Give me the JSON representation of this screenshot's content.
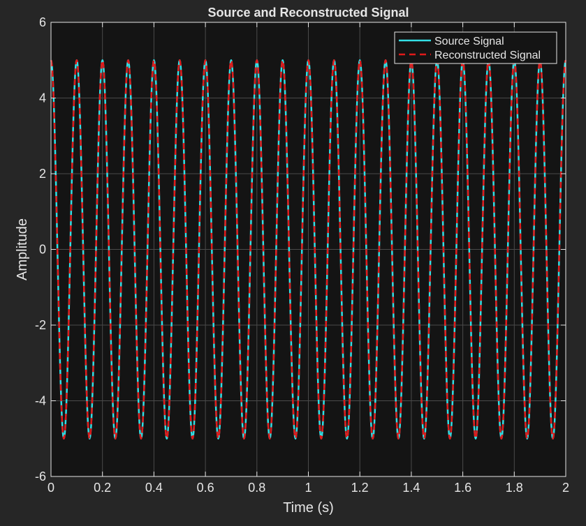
{
  "chart_data": {
    "type": "line",
    "title": "Source and Reconstructed Signal",
    "xlabel": "Time (s)",
    "ylabel": "Amplitude",
    "xlim": [
      0,
      2
    ],
    "ylim": [
      -6,
      6
    ],
    "xticks": [
      0,
      0.2,
      0.4,
      0.6,
      0.8,
      1,
      1.2,
      1.4,
      1.6,
      1.8,
      2
    ],
    "xtick_labels": [
      "0",
      "0.2",
      "0.4",
      "0.6",
      "0.8",
      "1",
      "1.2",
      "1.4",
      "1.6",
      "1.8",
      "2"
    ],
    "yticks": [
      6,
      4,
      2,
      0,
      -2,
      -4,
      -6
    ],
    "ytick_labels": [
      "6",
      "4",
      "2",
      "0",
      "-2",
      "-4",
      "-6"
    ],
    "grid": true,
    "legend_position": "top-right",
    "background_color": "#262626",
    "axes_color": "#141414",
    "grid_color": "#4a4a4a",
    "text_color": "#e6e6e6",
    "series": [
      {
        "name": "Source Signal",
        "color": "#33e0e6",
        "line_style": "solid",
        "function": "5*cos(2*pi*10*t)",
        "amplitude": 5,
        "frequency_hz": 10,
        "x_start": 0,
        "x_end": 2,
        "sample_step": 0.002
      },
      {
        "name": "Reconstructed Signal",
        "color": "#e01a1a",
        "line_style": "dashed",
        "function": "5*cos(2*pi*10*t)",
        "amplitude": 5,
        "frequency_hz": 10,
        "x_start": 0,
        "x_end": 2,
        "sample_step": 0.002
      }
    ]
  }
}
